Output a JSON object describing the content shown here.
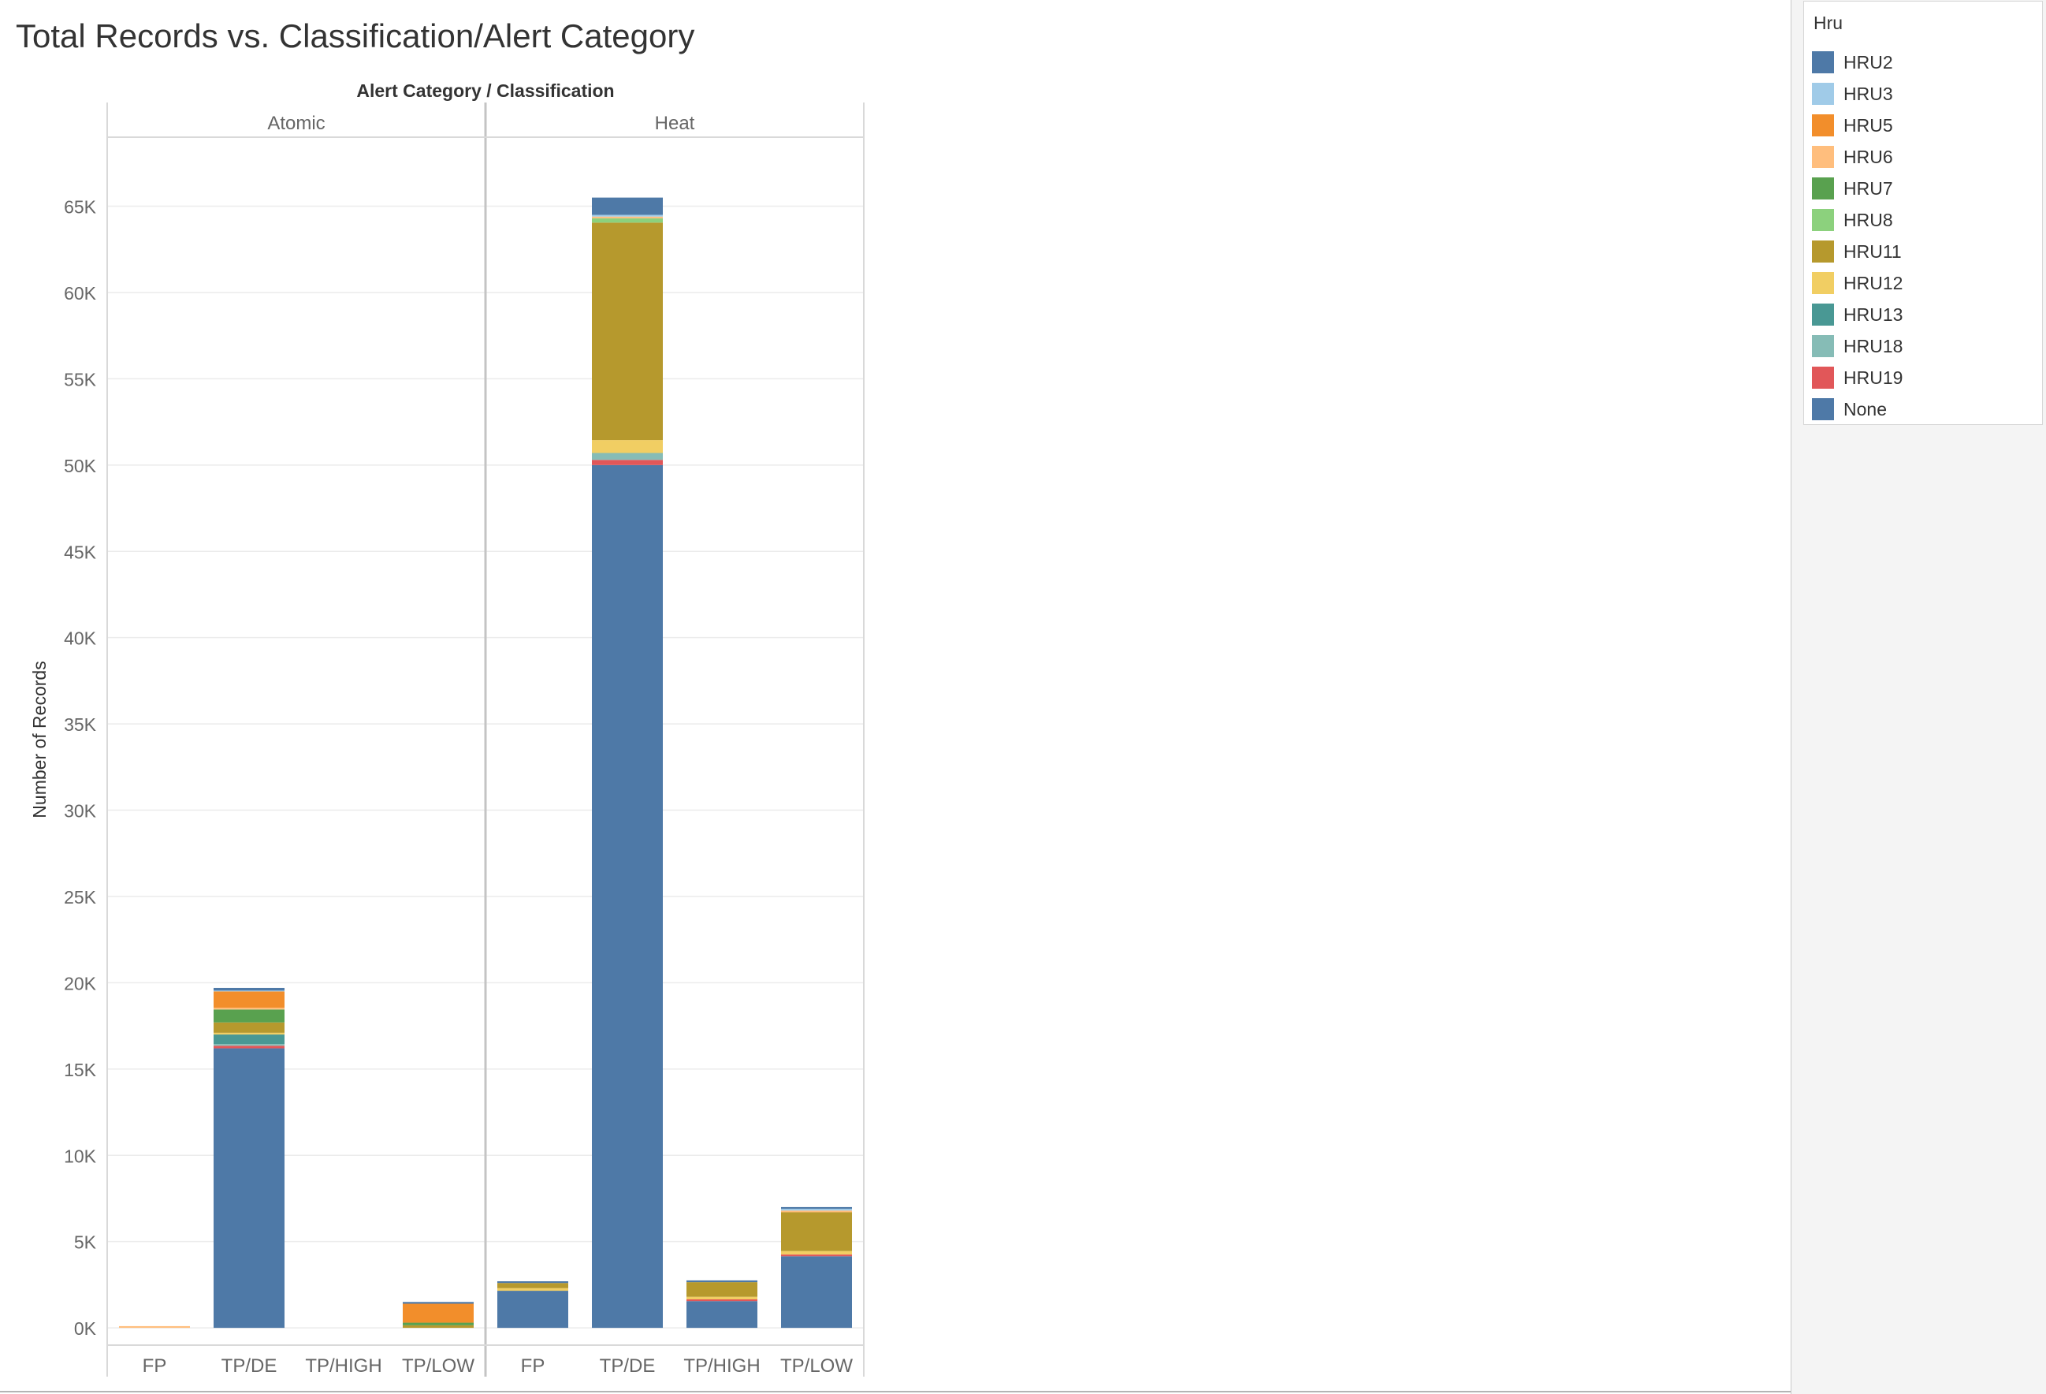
{
  "chart_data": {
    "type": "bar",
    "stacked": true,
    "title": "Total Records vs. Classification/Alert Category",
    "column_header": "Alert Category  /  Classification",
    "ylabel": "Number of Records",
    "ylim": [
      -1000,
      69000
    ],
    "y_ticks": [
      0,
      5000,
      10000,
      15000,
      20000,
      25000,
      30000,
      35000,
      40000,
      45000,
      50000,
      55000,
      60000,
      65000
    ],
    "y_tick_labels": [
      "0K",
      "5K",
      "10K",
      "15K",
      "20K",
      "25K",
      "30K",
      "35K",
      "40K",
      "45K",
      "50K",
      "55K",
      "60K",
      "65K"
    ],
    "grid": true,
    "panes": [
      "Atomic",
      "Heat"
    ],
    "categories": [
      "FP",
      "TP/DE",
      "TP/HIGH",
      "TP/LOW"
    ],
    "legend": {
      "title": "Hru",
      "placement": "right",
      "items": [
        {
          "name": "HRU2",
          "color": "#4e79a7"
        },
        {
          "name": "HRU3",
          "color": "#a0cbe8"
        },
        {
          "name": "HRU5",
          "color": "#f28e2b"
        },
        {
          "name": "HRU6",
          "color": "#ffbe7d"
        },
        {
          "name": "HRU7",
          "color": "#59a14f"
        },
        {
          "name": "HRU8",
          "color": "#8cd17d"
        },
        {
          "name": "HRU11",
          "color": "#b6992d"
        },
        {
          "name": "HRU12",
          "color": "#f1ce63"
        },
        {
          "name": "HRU13",
          "color": "#499894"
        },
        {
          "name": "HRU18",
          "color": "#86bcb6"
        },
        {
          "name": "HRU19",
          "color": "#e15759"
        },
        {
          "name": "None",
          "color": "#4e79a7"
        }
      ]
    },
    "bars": [
      {
        "pane": "Atomic",
        "category": "FP",
        "segments": [
          {
            "hru": "HRU6",
            "value": 100
          }
        ]
      },
      {
        "pane": "Atomic",
        "category": "TP/DE",
        "segments": [
          {
            "hru": "None",
            "value": 16200
          },
          {
            "hru": "HRU19",
            "value": 150
          },
          {
            "hru": "HRU18",
            "value": 100
          },
          {
            "hru": "HRU13",
            "value": 550
          },
          {
            "hru": "HRU12",
            "value": 100
          },
          {
            "hru": "HRU11",
            "value": 600
          },
          {
            "hru": "HRU7",
            "value": 750
          },
          {
            "hru": "HRU6",
            "value": 100
          },
          {
            "hru": "HRU5",
            "value": 950
          },
          {
            "hru": "HRU3",
            "value": 50
          },
          {
            "hru": "HRU2",
            "value": 150
          }
        ]
      },
      {
        "pane": "Atomic",
        "category": "TP/LOW",
        "segments": [
          {
            "hru": "HRU11",
            "value": 150
          },
          {
            "hru": "HRU7",
            "value": 150
          },
          {
            "hru": "HRU5",
            "value": 1100
          },
          {
            "hru": "HRU2",
            "value": 100
          }
        ]
      },
      {
        "pane": "Heat",
        "category": "FP",
        "segments": [
          {
            "hru": "None",
            "value": 2150
          },
          {
            "hru": "HRU12",
            "value": 150
          },
          {
            "hru": "HRU11",
            "value": 300
          },
          {
            "hru": "HRU2",
            "value": 100
          }
        ]
      },
      {
        "pane": "Heat",
        "category": "TP/DE",
        "segments": [
          {
            "hru": "None",
            "value": 50000
          },
          {
            "hru": "HRU19",
            "value": 300
          },
          {
            "hru": "HRU18",
            "value": 400
          },
          {
            "hru": "HRU12",
            "value": 750
          },
          {
            "hru": "HRU11",
            "value": 12600
          },
          {
            "hru": "HRU8",
            "value": 250
          },
          {
            "hru": "HRU6",
            "value": 100
          },
          {
            "hru": "HRU3",
            "value": 100
          },
          {
            "hru": "HRU2",
            "value": 1000
          }
        ]
      },
      {
        "pane": "Heat",
        "category": "TP/HIGH",
        "segments": [
          {
            "hru": "None",
            "value": 1550
          },
          {
            "hru": "HRU19",
            "value": 100
          },
          {
            "hru": "HRU12",
            "value": 150
          },
          {
            "hru": "HRU11",
            "value": 850
          },
          {
            "hru": "HRU2",
            "value": 100
          }
        ]
      },
      {
        "pane": "Heat",
        "category": "TP/LOW",
        "segments": [
          {
            "hru": "None",
            "value": 4150
          },
          {
            "hru": "HRU19",
            "value": 100
          },
          {
            "hru": "HRU12",
            "value": 200
          },
          {
            "hru": "HRU11",
            "value": 2250
          },
          {
            "hru": "HRU6",
            "value": 100
          },
          {
            "hru": "HRU3",
            "value": 100
          },
          {
            "hru": "HRU2",
            "value": 100
          }
        ]
      }
    ]
  }
}
